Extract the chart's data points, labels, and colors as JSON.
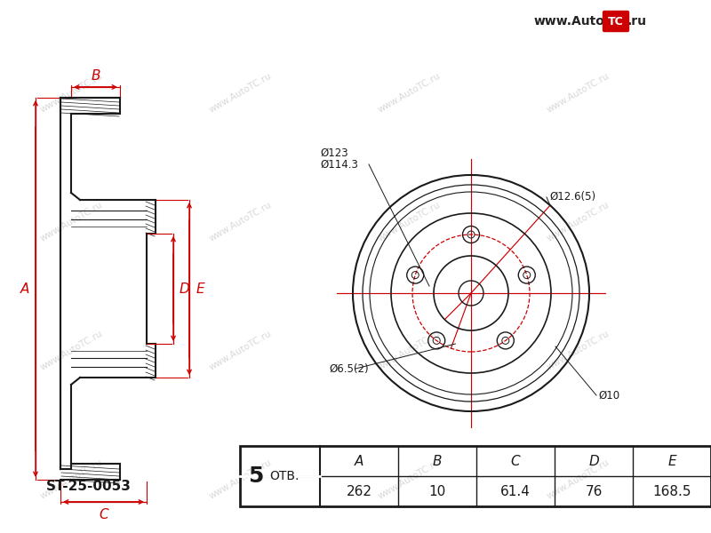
{
  "bg_color": "#ffffff",
  "line_color": "#1a1a1a",
  "dim_color": "#cc0000",
  "part_number": "ST-25-0053",
  "table_headers": [
    "A",
    "B",
    "C",
    "D",
    "E"
  ],
  "table_otv": "5 ОТВ.",
  "table_values": [
    "262",
    "10",
    "61.4",
    "76",
    "168.5"
  ],
  "annotations": {
    "outer_hole": "Ø12.6(5)",
    "bolt_hole": "Ø6.5(2)",
    "pcd1": "Ø114.3",
    "pcd2": "Ø123",
    "center_hole": "Ø10"
  },
  "watermark": "www.AutoTC.ru",
  "logo_text": "www.Auto",
  "logo_tc": "TC",
  "logo_ru": ".ru"
}
